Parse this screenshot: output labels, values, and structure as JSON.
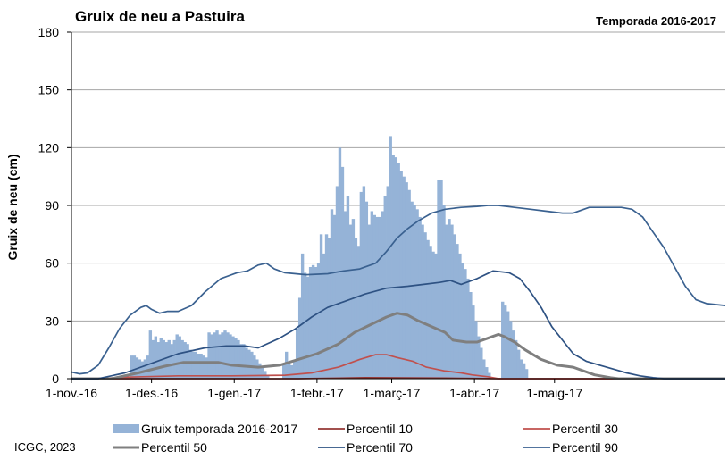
{
  "colors": {
    "bars": "#95B3D7",
    "p10": "#953735",
    "p30": "#C0504D",
    "p50": "#7F7F7F",
    "p70": "#2E5283",
    "p90": "#3A6190",
    "grid": "#A6A6A6",
    "axis": "#000000"
  },
  "chart_data": {
    "type": "bar+line",
    "title": "Gruix de neu a Pastuira",
    "subtitle": "Temporada 2016-2017",
    "ylabel": "Gruix de neu (cm)",
    "xlabel": "",
    "ylim": [
      0,
      180
    ],
    "yticks": [
      0,
      30,
      60,
      90,
      120,
      150,
      180
    ],
    "xlim": [
      0,
      245
    ],
    "x_unit": "days since 1-nov.-16",
    "xticks": [
      {
        "day": 0,
        "label": "1-nov.-16"
      },
      {
        "day": 30,
        "label": "1-des.-16"
      },
      {
        "day": 61,
        "label": "1-gen.-17"
      },
      {
        "day": 92,
        "label": "1-febr.-17"
      },
      {
        "day": 120,
        "label": "1-març-17"
      },
      {
        "day": 151,
        "label": "1-abr.-17"
      },
      {
        "day": 181,
        "label": "1-maig-17"
      }
    ],
    "grid": "horizontal",
    "legend_position": "bottom",
    "bars": {
      "name": "Gruix temporada 2016-2017",
      "start_day": 22,
      "values": [
        12,
        12,
        11,
        10,
        9,
        10,
        12,
        25,
        20,
        22,
        19,
        21,
        20,
        19,
        20,
        18,
        20,
        23,
        22,
        20,
        19,
        18,
        15,
        14,
        14,
        13,
        13,
        12,
        11,
        24,
        23,
        24,
        25,
        23,
        24,
        25,
        24,
        23,
        22,
        21,
        20,
        18,
        18,
        16,
        15,
        14,
        12,
        10,
        8,
        6,
        4,
        2,
        0,
        0,
        0,
        0,
        0,
        8,
        14,
        8,
        7,
        9,
        26,
        42,
        65,
        55,
        53,
        58,
        59,
        58,
        60,
        75,
        65,
        75,
        73,
        88,
        85,
        100,
        120,
        110,
        87,
        95,
        80,
        83,
        73,
        69,
        97,
        100,
        92,
        80,
        87,
        85,
        84,
        84,
        87,
        95,
        100,
        126,
        116,
        115,
        112,
        108,
        105,
        102,
        98,
        92,
        90,
        88,
        84,
        80,
        76,
        72,
        69,
        66,
        65,
        103,
        103,
        90,
        80,
        83,
        80,
        75,
        70,
        65,
        60,
        57,
        52,
        45,
        38,
        30,
        22,
        16,
        10,
        6,
        3,
        0,
        0,
        0,
        0,
        40,
        38,
        35,
        30,
        25,
        20,
        15,
        10,
        8,
        5
      ]
    },
    "series": [
      {
        "name": "Percentil 10",
        "colorKey": "p10",
        "width": 1.7,
        "points": [
          [
            0,
            0
          ],
          [
            85,
            0
          ],
          [
            110,
            0.5
          ],
          [
            140,
            0.3
          ],
          [
            160,
            0
          ],
          [
            245,
            0
          ]
        ]
      },
      {
        "name": "Percentil 30",
        "colorKey": "p30",
        "width": 1.7,
        "points": [
          [
            0,
            0
          ],
          [
            10,
            0
          ],
          [
            20,
            0.8
          ],
          [
            40,
            1.5
          ],
          [
            60,
            1.5
          ],
          [
            80,
            1.8
          ],
          [
            90,
            3
          ],
          [
            100,
            6
          ],
          [
            108,
            10
          ],
          [
            114,
            12.5
          ],
          [
            118,
            12.5
          ],
          [
            122,
            11
          ],
          [
            128,
            9
          ],
          [
            133,
            6
          ],
          [
            140,
            4
          ],
          [
            146,
            3
          ],
          [
            150,
            2
          ],
          [
            156,
            1
          ],
          [
            160,
            0
          ],
          [
            245,
            0
          ]
        ]
      },
      {
        "name": "Percentil 50",
        "colorKey": "p50",
        "width": 3,
        "points": [
          [
            0,
            0
          ],
          [
            15,
            0
          ],
          [
            25,
            3
          ],
          [
            35,
            6.5
          ],
          [
            42,
            8.5
          ],
          [
            55,
            8.5
          ],
          [
            60,
            7
          ],
          [
            70,
            6
          ],
          [
            78,
            7
          ],
          [
            85,
            10
          ],
          [
            92,
            13
          ],
          [
            100,
            18
          ],
          [
            106,
            24
          ],
          [
            112,
            28
          ],
          [
            118,
            32
          ],
          [
            122,
            34
          ],
          [
            126,
            33
          ],
          [
            130,
            30
          ],
          [
            135,
            27
          ],
          [
            140,
            24
          ],
          [
            143,
            20
          ],
          [
            148,
            19
          ],
          [
            152,
            19
          ],
          [
            156,
            21
          ],
          [
            160,
            23
          ],
          [
            162,
            22
          ],
          [
            166,
            19
          ],
          [
            170,
            15
          ],
          [
            176,
            10
          ],
          [
            182,
            7
          ],
          [
            188,
            6
          ],
          [
            192,
            4
          ],
          [
            196,
            2
          ],
          [
            202,
            0.5
          ],
          [
            205,
            0
          ],
          [
            245,
            0
          ]
        ]
      },
      {
        "name": "Percentil 70",
        "colorKey": "p70",
        "width": 1.7,
        "points": [
          [
            0,
            0
          ],
          [
            10,
            0
          ],
          [
            20,
            3
          ],
          [
            30,
            8
          ],
          [
            40,
            13
          ],
          [
            50,
            16
          ],
          [
            58,
            17
          ],
          [
            65,
            17
          ],
          [
            70,
            16
          ],
          [
            78,
            21
          ],
          [
            84,
            26
          ],
          [
            90,
            32
          ],
          [
            96,
            37
          ],
          [
            102,
            40
          ],
          [
            110,
            44
          ],
          [
            118,
            47
          ],
          [
            126,
            48
          ],
          [
            132,
            49
          ],
          [
            138,
            50
          ],
          [
            142,
            51
          ],
          [
            146,
            49
          ],
          [
            152,
            52
          ],
          [
            158,
            56
          ],
          [
            164,
            55
          ],
          [
            168,
            52
          ],
          [
            172,
            45
          ],
          [
            176,
            37
          ],
          [
            180,
            27
          ],
          [
            184,
            20
          ],
          [
            188,
            13
          ],
          [
            193,
            9
          ],
          [
            198,
            7
          ],
          [
            203,
            5
          ],
          [
            208,
            3
          ],
          [
            213,
            1.5
          ],
          [
            218,
            0.5
          ],
          [
            222,
            0
          ],
          [
            245,
            0
          ]
        ]
      },
      {
        "name": "Percentil 90",
        "colorKey": "p90",
        "width": 1.7,
        "points": [
          [
            0,
            3.5
          ],
          [
            3,
            2.5
          ],
          [
            6,
            3
          ],
          [
            10,
            7
          ],
          [
            14,
            16
          ],
          [
            18,
            26
          ],
          [
            22,
            33
          ],
          [
            26,
            37
          ],
          [
            28,
            38
          ],
          [
            30,
            36
          ],
          [
            33,
            34
          ],
          [
            36,
            35
          ],
          [
            40,
            35
          ],
          [
            45,
            38
          ],
          [
            50,
            45
          ],
          [
            56,
            52
          ],
          [
            62,
            55
          ],
          [
            66,
            56
          ],
          [
            70,
            59
          ],
          [
            73,
            60
          ],
          [
            76,
            57
          ],
          [
            80,
            55
          ],
          [
            88,
            54
          ],
          [
            96,
            54.5
          ],
          [
            102,
            56
          ],
          [
            108,
            57
          ],
          [
            114,
            60
          ],
          [
            118,
            66
          ],
          [
            122,
            73
          ],
          [
            126,
            78
          ],
          [
            130,
            82
          ],
          [
            135,
            86
          ],
          [
            140,
            88
          ],
          [
            146,
            89
          ],
          [
            152,
            89.5
          ],
          [
            156,
            90
          ],
          [
            160,
            90
          ],
          [
            166,
            89
          ],
          [
            172,
            88
          ],
          [
            178,
            87
          ],
          [
            184,
            86
          ],
          [
            188,
            86
          ],
          [
            194,
            89
          ],
          [
            200,
            89
          ],
          [
            206,
            89
          ],
          [
            210,
            88
          ],
          [
            214,
            84
          ],
          [
            218,
            76
          ],
          [
            222,
            68
          ],
          [
            226,
            58
          ],
          [
            230,
            48
          ],
          [
            234,
            41
          ],
          [
            238,
            39
          ],
          [
            245,
            38
          ]
        ]
      }
    ],
    "p90_tail": [
      [
        245,
        38
      ],
      [
        250,
        38
      ],
      [
        256,
        35
      ],
      [
        262,
        28
      ],
      [
        268,
        18
      ],
      [
        274,
        10
      ],
      [
        280,
        6
      ],
      [
        286,
        4
      ],
      [
        292,
        3
      ],
      [
        298,
        1.5
      ],
      [
        304,
        0.5
      ],
      [
        310,
        0
      ]
    ]
  },
  "legend": [
    {
      "label": "Gruix temporada 2016-2017",
      "kind": "bar",
      "colorKey": "bars"
    },
    {
      "label": "Percentil 10",
      "kind": "line",
      "colorKey": "p10",
      "width": 1.7
    },
    {
      "label": "Percentil 30",
      "kind": "line",
      "colorKey": "p30",
      "width": 1.7
    },
    {
      "label": "Percentil 50",
      "kind": "line",
      "colorKey": "p50",
      "width": 3
    },
    {
      "label": "Percentil 70",
      "kind": "line",
      "colorKey": "p70",
      "width": 1.7
    },
    {
      "label": "Percentil 90",
      "kind": "line",
      "colorKey": "p90",
      "width": 1.7
    }
  ],
  "credit": "ICGC, 2023"
}
